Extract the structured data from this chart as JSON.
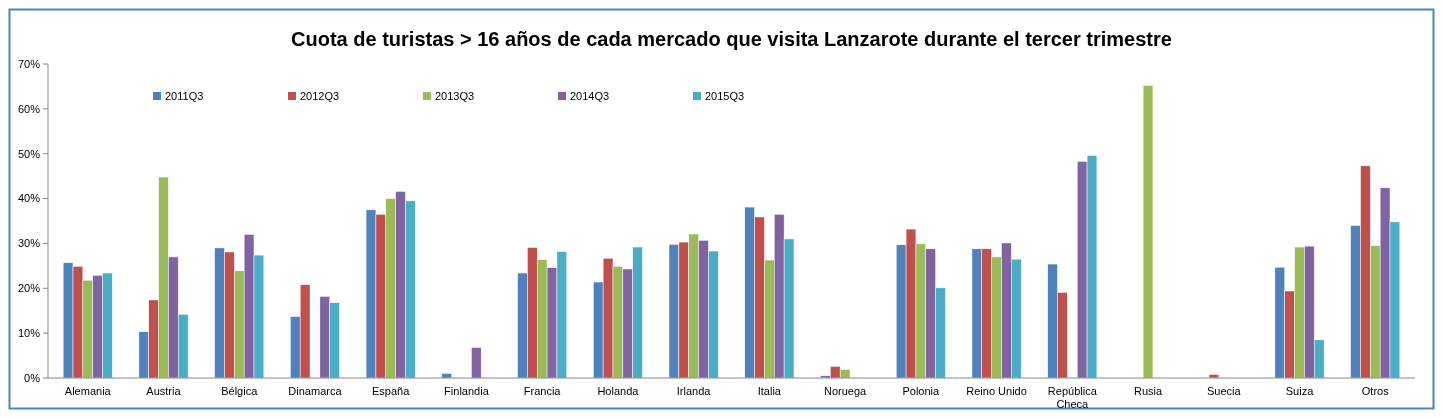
{
  "chart_data": {
    "type": "bar",
    "title": "Cuota de turistas > 16 años de cada mercado que visita Lanzarote durante el tercer trimestre",
    "categories": [
      "Alemania",
      "Austria",
      "Bélgica",
      "Dinamarca",
      "España",
      "Finlandia",
      "Francia",
      "Holanda",
      "Irlanda",
      "Italia",
      "Noruega",
      "Polonia",
      "Reino Unido",
      "República Checa",
      "Rusia",
      "Suecia",
      "Suiza",
      "Otros"
    ],
    "series": [
      {
        "name": "2011Q3",
        "color": "#4f81bd",
        "values": [
          25.7,
          10.3,
          29.0,
          13.7,
          37.5,
          1.0,
          23.4,
          21.4,
          29.8,
          38.1,
          0.5,
          29.7,
          28.8,
          25.4,
          null,
          null,
          24.7,
          34.0
        ]
      },
      {
        "name": "2012Q3",
        "color": "#c0504d",
        "values": [
          24.9,
          17.4,
          28.1,
          20.8,
          36.5,
          null,
          29.1,
          26.7,
          30.3,
          35.9,
          2.6,
          33.2,
          28.8,
          19.1,
          null,
          0.8,
          19.4,
          47.3
        ]
      },
      {
        "name": "2013Q3",
        "color": "#9bbb59",
        "values": [
          21.8,
          44.8,
          23.9,
          null,
          40.0,
          null,
          26.4,
          24.9,
          32.1,
          26.3,
          1.9,
          29.9,
          27.0,
          null,
          65.2,
          null,
          29.2,
          29.5
        ]
      },
      {
        "name": "2014Q3",
        "color": "#8064a2",
        "values": [
          22.9,
          27.0,
          32.0,
          18.2,
          41.6,
          6.8,
          24.6,
          24.3,
          30.7,
          36.5,
          null,
          28.8,
          30.1,
          48.3,
          null,
          null,
          29.4,
          42.4
        ]
      },
      {
        "name": "2015Q3",
        "color": "#4bacc6",
        "values": [
          23.4,
          14.2,
          27.4,
          16.8,
          39.5,
          null,
          28.2,
          29.2,
          28.3,
          31.0,
          null,
          20.1,
          26.5,
          49.6,
          null,
          null,
          8.5,
          34.8
        ]
      }
    ],
    "ylim": [
      0,
      70
    ],
    "yticks": [
      {
        "value": 0,
        "label": "0%"
      },
      {
        "value": 10,
        "label": "10%"
      },
      {
        "value": 20,
        "label": "20%"
      },
      {
        "value": 30,
        "label": "30%"
      },
      {
        "value": 40,
        "label": "40%"
      },
      {
        "value": 50,
        "label": "50%"
      },
      {
        "value": 60,
        "label": "60%"
      },
      {
        "value": 70,
        "label": "70%"
      }
    ],
    "legend": "top left"
  }
}
